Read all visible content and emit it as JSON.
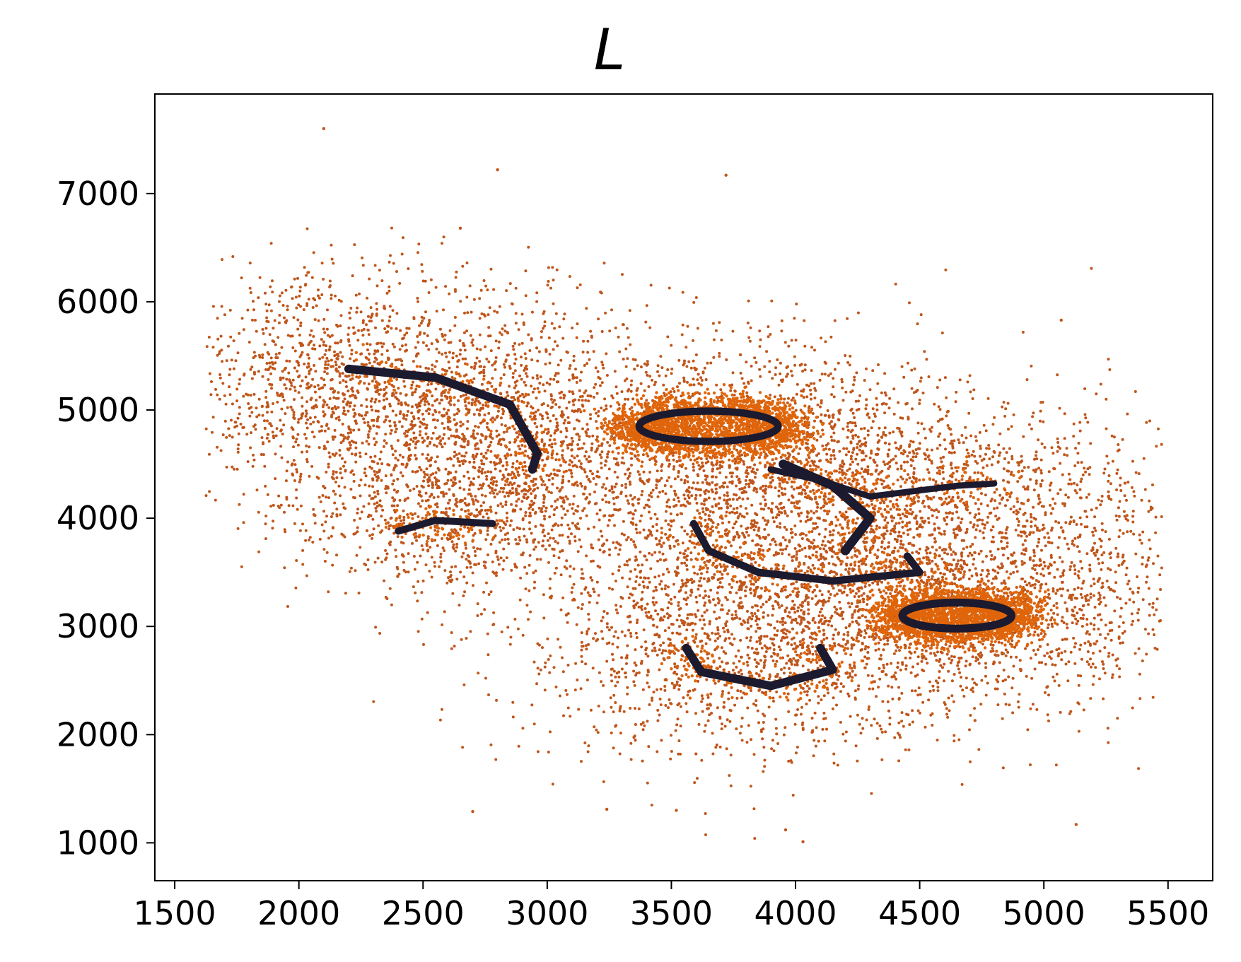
{
  "chart_data": {
    "type": "scatter",
    "title": "L",
    "xlabel": "",
    "ylabel": "",
    "xlim": [
      1420,
      5680
    ],
    "ylim": [
      650,
      7920
    ],
    "xticks": [
      1500,
      2000,
      2500,
      3000,
      3500,
      4000,
      4500,
      5000,
      5500
    ],
    "yticks": [
      1000,
      2000,
      3000,
      4000,
      5000,
      6000,
      7000
    ],
    "grid": false,
    "legend": "none",
    "colors": {
      "scatter": "#c0561b",
      "scatter_core": "#e0650a",
      "curve": "#1c1a2e"
    },
    "series": [
      {
        "kind": "noise",
        "clusters": [
          {
            "cx": 2450,
            "cy": 5050,
            "sx": 420,
            "sy": 620,
            "n": 1500
          },
          {
            "cx": 2900,
            "cy": 4550,
            "sx": 340,
            "sy": 520,
            "n": 900
          },
          {
            "cx": 3650,
            "cy": 4750,
            "sx": 420,
            "sy": 520,
            "n": 900
          },
          {
            "cx": 4250,
            "cy": 4300,
            "sx": 420,
            "sy": 520,
            "n": 1300
          },
          {
            "cx": 4050,
            "cy": 3500,
            "sx": 520,
            "sy": 600,
            "n": 1300
          },
          {
            "cx": 3800,
            "cy": 2800,
            "sx": 480,
            "sy": 520,
            "n": 1300
          },
          {
            "cx": 4700,
            "cy": 3100,
            "sx": 380,
            "sy": 420,
            "n": 900
          },
          {
            "cx": 2600,
            "cy": 3900,
            "sx": 280,
            "sy": 320,
            "n": 400
          },
          {
            "cx": 2000,
            "cy": 5300,
            "sx": 220,
            "sy": 500,
            "n": 400
          },
          {
            "cx": 5100,
            "cy": 3800,
            "sx": 250,
            "sy": 700,
            "n": 500
          }
        ],
        "outliers": [
          [
            2100,
            7600
          ],
          [
            2800,
            7220
          ],
          [
            3720,
            7170
          ],
          [
            2650,
            6680
          ],
          [
            5070,
            5830
          ],
          [
            4030,
            1010
          ],
          [
            3960,
            1120
          ],
          [
            2700,
            1290
          ],
          [
            5130,
            1170
          ],
          [
            3240,
            1310
          ],
          [
            3520,
            1300
          ]
        ]
      },
      {
        "kind": "curves",
        "paths": [
          {
            "points": [
              [
                2200,
                5380
              ],
              [
                2550,
                5300
              ],
              [
                2850,
                5050
              ],
              [
                2960,
                4600
              ],
              [
                2940,
                4450
              ]
            ],
            "width": 3
          },
          {
            "points": [
              [
                2400,
                3880
              ],
              [
                2550,
                3980
              ],
              [
                2780,
                3950
              ]
            ],
            "width": 2.5
          },
          {
            "ellipse": [
              3650,
              4850,
              280,
              140
            ],
            "width": 2.6
          },
          {
            "points": [
              [
                3900,
                4450
              ],
              [
                4100,
                4350
              ],
              [
                4300,
                4200
              ],
              [
                4650,
                4300
              ],
              [
                4800,
                4320
              ]
            ],
            "width": 2.2
          },
          {
            "points": [
              [
                3950,
                4500
              ],
              [
                4150,
                4300
              ],
              [
                4300,
                4000
              ],
              [
                4200,
                3700
              ]
            ],
            "width": 3.2
          },
          {
            "points": [
              [
                3590,
                3950
              ],
              [
                3650,
                3700
              ],
              [
                3850,
                3500
              ],
              [
                4150,
                3420
              ],
              [
                4500,
                3500
              ],
              [
                4450,
                3650
              ]
            ],
            "width": 2.6
          },
          {
            "points": [
              [
                3560,
                2800
              ],
              [
                3620,
                2580
              ],
              [
                3900,
                2450
              ],
              [
                4150,
                2600
              ],
              [
                4100,
                2800
              ]
            ],
            "width": 3
          },
          {
            "ellipse": [
              4650,
              3100,
              220,
              120
            ],
            "width": 2.8
          }
        ]
      }
    ]
  }
}
